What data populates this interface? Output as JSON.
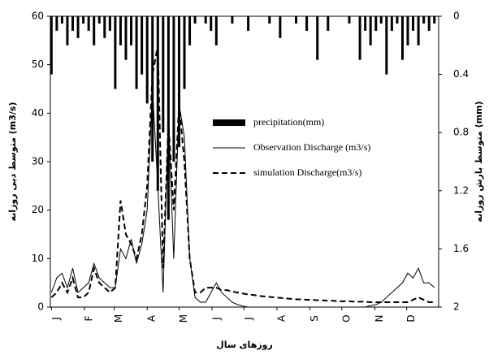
{
  "chart_data": {
    "type": "line",
    "x_label": "روزهای سال",
    "y_label": "متوسط دبی روزانه (m3/s)",
    "y2_label": "متوسط بارش روزانه (mm)",
    "xlim": [
      0,
      365
    ],
    "xticks": [
      {
        "value": 1,
        "label": "J"
      },
      {
        "value": 32,
        "label": "F"
      },
      {
        "value": 60,
        "label": "M"
      },
      {
        "value": 91,
        "label": "A"
      },
      {
        "value": 121,
        "label": "M"
      },
      {
        "value": 152,
        "label": "J"
      },
      {
        "value": 182,
        "label": "J"
      },
      {
        "value": 213,
        "label": "A"
      },
      {
        "value": 244,
        "label": "S"
      },
      {
        "value": 274,
        "label": "O"
      },
      {
        "value": 305,
        "label": "N"
      },
      {
        "value": 335,
        "label": "D"
      }
    ],
    "ylim": [
      0,
      60
    ],
    "yticks": [
      0,
      10,
      20,
      30,
      40,
      50,
      60
    ],
    "y2lim": [
      0,
      2
    ],
    "y2ticks": [
      0,
      0.4,
      0.8,
      1.2,
      1.6,
      2
    ],
    "y2_inverted": true,
    "x": [
      1,
      6,
      11,
      16,
      21,
      26,
      31,
      36,
      41,
      46,
      51,
      56,
      61,
      66,
      71,
      76,
      81,
      86,
      91,
      96,
      101,
      106,
      111,
      116,
      121,
      126,
      131,
      136,
      141,
      146,
      151,
      156,
      161,
      166,
      171,
      176,
      181,
      186,
      191,
      196,
      201,
      206,
      211,
      216,
      221,
      226,
      231,
      236,
      241,
      246,
      251,
      256,
      261,
      266,
      271,
      276,
      281,
      286,
      291,
      296,
      301,
      306,
      311,
      316,
      321,
      326,
      331,
      336,
      341,
      346,
      351,
      356,
      361
    ],
    "series": [
      {
        "name": "precipitation(mm)",
        "type": "bar",
        "axis": "y2",
        "color": "#000000",
        "values": [
          0.4,
          0.1,
          0.05,
          0.2,
          0.1,
          0.15,
          0.05,
          0.1,
          0.2,
          0.05,
          0.15,
          0.1,
          0.5,
          0.2,
          0.3,
          0.2,
          0.5,
          0.4,
          0.6,
          1.0,
          1.2,
          0.8,
          1.4,
          1.0,
          0.9,
          0.5,
          0.2,
          0.05,
          0,
          0.05,
          0.1,
          0.2,
          0,
          0,
          0.05,
          0,
          0,
          0.1,
          0,
          0,
          0,
          0.05,
          0,
          0.15,
          0,
          0,
          0.05,
          0,
          0.1,
          0,
          0.3,
          0,
          0.1,
          0,
          0,
          0,
          0.05,
          0,
          0.3,
          0.1,
          0.2,
          0.1,
          0.05,
          0.4,
          0.1,
          0.05,
          0.3,
          0.2,
          0.1,
          0.2,
          0.05,
          0.1,
          0.05
        ]
      },
      {
        "name": "Observation Discharge (m3/s)",
        "type": "line",
        "dash": false,
        "color": "#000000",
        "values": [
          3,
          6,
          7,
          4,
          8,
          3,
          4,
          5,
          9,
          6,
          5,
          4,
          4,
          12,
          10,
          14,
          9,
          13,
          20,
          45,
          25,
          3,
          39,
          10,
          42,
          35,
          10,
          2,
          1,
          1,
          3,
          5,
          3,
          2,
          1,
          0.5,
          0.2,
          0,
          0,
          0,
          0,
          0,
          0,
          0,
          0,
          0,
          0,
          0,
          0,
          0,
          0,
          0,
          0,
          0,
          0,
          0,
          0,
          0,
          0,
          0,
          0.3,
          0.5,
          1,
          2,
          3,
          4,
          5,
          7,
          6,
          8,
          5,
          5,
          4
        ]
      },
      {
        "name": "simulation Discharge(m3/s)",
        "type": "line",
        "dash": true,
        "color": "#000000",
        "values": [
          2,
          3,
          5,
          3,
          6,
          2,
          2,
          3,
          8,
          5,
          4,
          3,
          4,
          22,
          15,
          13,
          10,
          15,
          25,
          48,
          54,
          8,
          38,
          20,
          42,
          30,
          10,
          3,
          3,
          4,
          4,
          4,
          3.5,
          3.5,
          3.2,
          3,
          2.8,
          2.6,
          2.5,
          2.3,
          2.2,
          2.1,
          2,
          1.9,
          1.8,
          1.7,
          1.6,
          1.6,
          1.5,
          1.5,
          1.4,
          1.4,
          1.3,
          1.3,
          1.2,
          1.2,
          1.2,
          1.1,
          1.1,
          1.1,
          1,
          1,
          1,
          1,
          1,
          1,
          1,
          1,
          1.5,
          2,
          1.5,
          1,
          1
        ]
      }
    ]
  }
}
